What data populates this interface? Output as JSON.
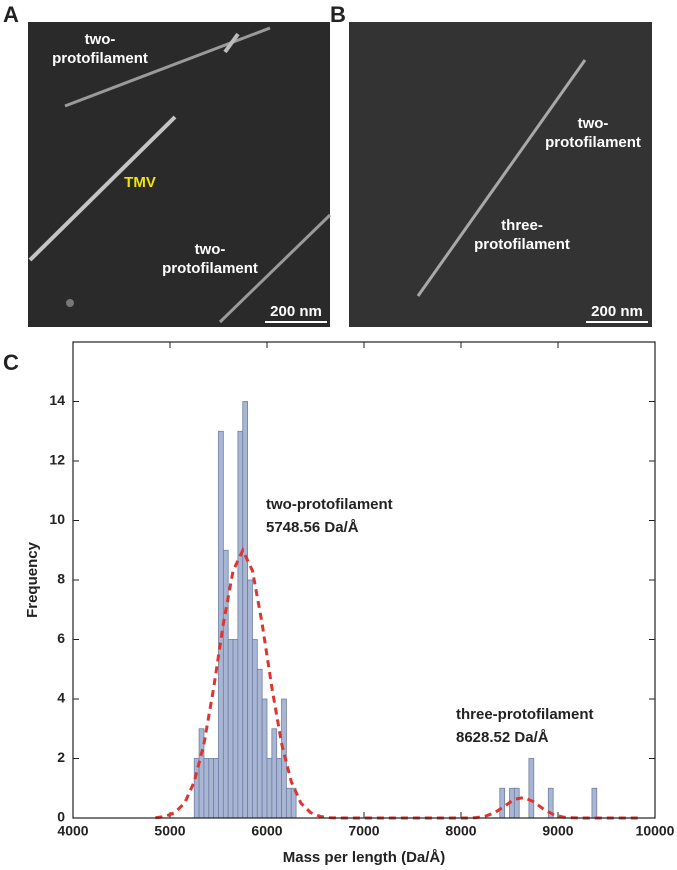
{
  "panels": [
    {
      "label": "A",
      "annotations": [
        [
          "two-",
          "protofilament"
        ],
        [
          "TMV"
        ],
        [
          "two-",
          "protofilament"
        ]
      ],
      "scale_bar": "200 nm"
    },
    {
      "label": "B",
      "annotations": [
        [
          "two-",
          "protofilament"
        ],
        [
          "three-",
          "protofilament"
        ]
      ],
      "scale_bar": "200 nm"
    }
  ],
  "chart_data": {
    "type": "histogram",
    "panel_label": "C",
    "xlabel": "Mass per length (Da/Å)",
    "ylabel": "Frequency",
    "bins": [
      5250,
      5300,
      5350,
      5400,
      5450,
      5500,
      5550,
      5600,
      5650,
      5700,
      5750,
      5800,
      5850,
      5900,
      5950,
      6000,
      6050,
      6100,
      6150,
      6200,
      6250,
      6300,
      8400,
      8450,
      8500,
      8550,
      8600,
      8650,
      8700,
      8750,
      8800,
      8850,
      8900,
      8950,
      9350,
      9400
    ],
    "counts": [
      2,
      3,
      2,
      2,
      2,
      13,
      9,
      6,
      6,
      13,
      14,
      8,
      6,
      5,
      4,
      2,
      3,
      2,
      4,
      1,
      1,
      0,
      1,
      0,
      1,
      1,
      0,
      0,
      2,
      0,
      0,
      0,
      1,
      0,
      1
    ],
    "color": "#a9b6d3",
    "edgecolor": "#6f7fa6",
    "fit": {
      "color": "#e0342f",
      "x": [
        4850,
        4950,
        5050,
        5150,
        5250,
        5350,
        5450,
        5550,
        5650,
        5750,
        5850,
        5950,
        6050,
        6150,
        6250,
        6350,
        6450,
        6550,
        6650,
        6750,
        6850,
        6950,
        7050,
        7150,
        7250,
        7350,
        7450,
        7550,
        7650,
        7750,
        7850,
        7950,
        8050,
        8150,
        8250,
        8350,
        8450,
        8550,
        8650,
        8750,
        8850,
        8950,
        9050,
        9150,
        9250,
        9350,
        9450,
        9550,
        9650,
        9750,
        9850
      ],
      "values": [
        0.01,
        0.05,
        0.18,
        0.5,
        1.22,
        2.5,
        4.38,
        6.54,
        8.31,
        9,
        8.31,
        6.54,
        4.38,
        2.5,
        1.22,
        0.5,
        0.18,
        0.05,
        0.01,
        0,
        0,
        0,
        0,
        0,
        0,
        0,
        0,
        0,
        0,
        0,
        0,
        0,
        0,
        0.01,
        0.06,
        0.18,
        0.4,
        0.63,
        0.69,
        0.54,
        0.3,
        0.12,
        0.03,
        0.01,
        0,
        0,
        0,
        0,
        0,
        0,
        0
      ]
    },
    "annotations": [
      [
        "two-protofilament",
        "5748.56 Da/Å"
      ],
      [
        "three-protofilament",
        "8628.52 Da/Å"
      ]
    ],
    "xlim": [
      4000,
      10000
    ],
    "ylim": [
      0,
      16
    ],
    "xticks": [
      4000,
      5000,
      6000,
      7000,
      8000,
      9000,
      10000
    ],
    "yticks": [
      0,
      2,
      4,
      6,
      8,
      10,
      12,
      14
    ]
  }
}
